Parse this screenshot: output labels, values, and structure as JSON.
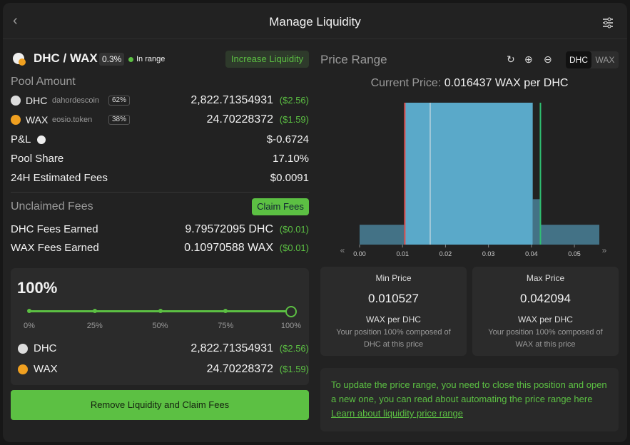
{
  "header": {
    "title": "Manage Liquidity"
  },
  "pool": {
    "pair": "DHC / WAX",
    "fee": "0.3%",
    "status": "In range",
    "increase_button": "Increase Liquidity"
  },
  "pool_amount": {
    "title": "Pool Amount",
    "rows": [
      {
        "symbol": "DHC",
        "contract": "dahordescoin",
        "share": "62%",
        "amount": "2,822.71354931",
        "usd": "($2.56)"
      },
      {
        "symbol": "WAX",
        "contract": "eosio.token",
        "share": "38%",
        "amount": "24.70228372",
        "usd": "($1.59)"
      }
    ]
  },
  "stats": [
    {
      "label": "P&L",
      "value": "$-0.6724"
    },
    {
      "label": "Pool Share",
      "value": "17.10%"
    },
    {
      "label": "24H Estimated Fees",
      "value": "$0.0091"
    }
  ],
  "unclaimed": {
    "title": "Unclaimed Fees",
    "button": "Claim Fees",
    "rows": [
      {
        "label": "DHC Fees Earned",
        "amount": "9.79572095 DHC",
        "usd": "($0.01)"
      },
      {
        "label": "WAX Fees Earned",
        "amount": "0.10970588 WAX",
        "usd": "($0.01)"
      }
    ]
  },
  "remove": {
    "percent": "100%",
    "slider_ticks": [
      "0%",
      "25%",
      "50%",
      "75%",
      "100%"
    ],
    "rows": [
      {
        "symbol": "DHC",
        "amount": "2,822.71354931",
        "usd": "($2.56)"
      },
      {
        "symbol": "WAX",
        "amount": "24.70228372",
        "usd": "($1.59)"
      }
    ],
    "button": "Remove Liquidity and Claim Fees"
  },
  "price_range": {
    "title": "Price Range",
    "tokens": [
      "DHC",
      "WAX"
    ],
    "current_label": "Current Price:",
    "current_value": "0.016437 WAX per DHC",
    "chart": {
      "type": "histogram",
      "xlim": [
        0,
        0.0558
      ],
      "ylim": [
        0,
        100
      ],
      "xticks": [
        {
          "value": 0,
          "label": "0.00"
        },
        {
          "value": 0.01,
          "label": "0.01"
        },
        {
          "value": 0.02,
          "label": "0.02"
        },
        {
          "value": 0.03,
          "label": "0.03"
        },
        {
          "value": 0.04,
          "label": "0.04"
        },
        {
          "value": 0.05,
          "label": "0.05"
        }
      ],
      "bins": [
        0,
        0.0105,
        0.0403,
        0.042,
        0.0558
      ],
      "values": [
        14,
        100,
        32,
        14
      ],
      "color": "#5aa9c9",
      "min_price": 0.010527,
      "max_price": 0.042094,
      "current_price": 0.016437
    }
  },
  "min": {
    "title": "Min Price",
    "value": "0.010527",
    "unit": "WAX per DHC",
    "note": "Your position 100% composed of DHC at this price"
  },
  "max": {
    "title": "Max Price",
    "value": "0.042094",
    "unit": "WAX per DHC",
    "note": "Your position 100% composed of WAX at this price"
  },
  "info": {
    "text": "To update the price range, you need to close this position and open a new one, you can read about automating the price range here ",
    "link": "Learn about liquidity price range"
  }
}
